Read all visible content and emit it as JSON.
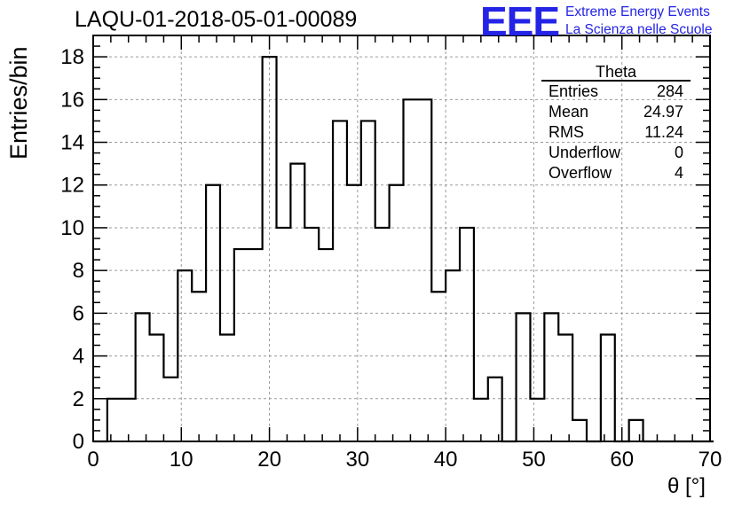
{
  "title": "LAQU-01-2018-05-01-00089",
  "logo": {
    "text": "EEE",
    "line1": "Extreme Energy Events",
    "line2": "La Scienza nelle Scuole"
  },
  "stats": {
    "title": "Theta",
    "rows": [
      {
        "label": "Entries",
        "value": "284"
      },
      {
        "label": "Mean",
        "value": "24.97"
      },
      {
        "label": "RMS",
        "value": "11.24"
      },
      {
        "label": "Underflow",
        "value": "0"
      },
      {
        "label": "Overflow",
        "value": "4"
      }
    ]
  },
  "chart_data": {
    "type": "histogram",
    "xlabel": "θ [°]",
    "ylabel": "Entries/bin",
    "xlim": [
      0,
      70
    ],
    "ylim": [
      0,
      19
    ],
    "xticks": [
      0,
      10,
      20,
      30,
      40,
      50,
      60,
      70
    ],
    "yticks": [
      0,
      2,
      4,
      6,
      8,
      10,
      12,
      14,
      16,
      18
    ],
    "grid": true,
    "bin_width": 1.6,
    "bin_start": 0,
    "values": [
      0,
      2,
      2,
      6,
      5,
      3,
      8,
      7,
      12,
      5,
      9,
      9,
      18,
      10,
      13,
      10,
      9,
      15,
      12,
      15,
      10,
      12,
      16,
      16,
      7,
      8,
      10,
      2,
      3,
      0,
      6,
      2,
      6,
      5,
      1,
      0,
      5,
      0,
      1,
      0,
      0,
      0,
      0,
      0
    ],
    "colors": {
      "line": "#000000",
      "grid": "#9a9a9a",
      "logo": "#2424e6"
    }
  }
}
